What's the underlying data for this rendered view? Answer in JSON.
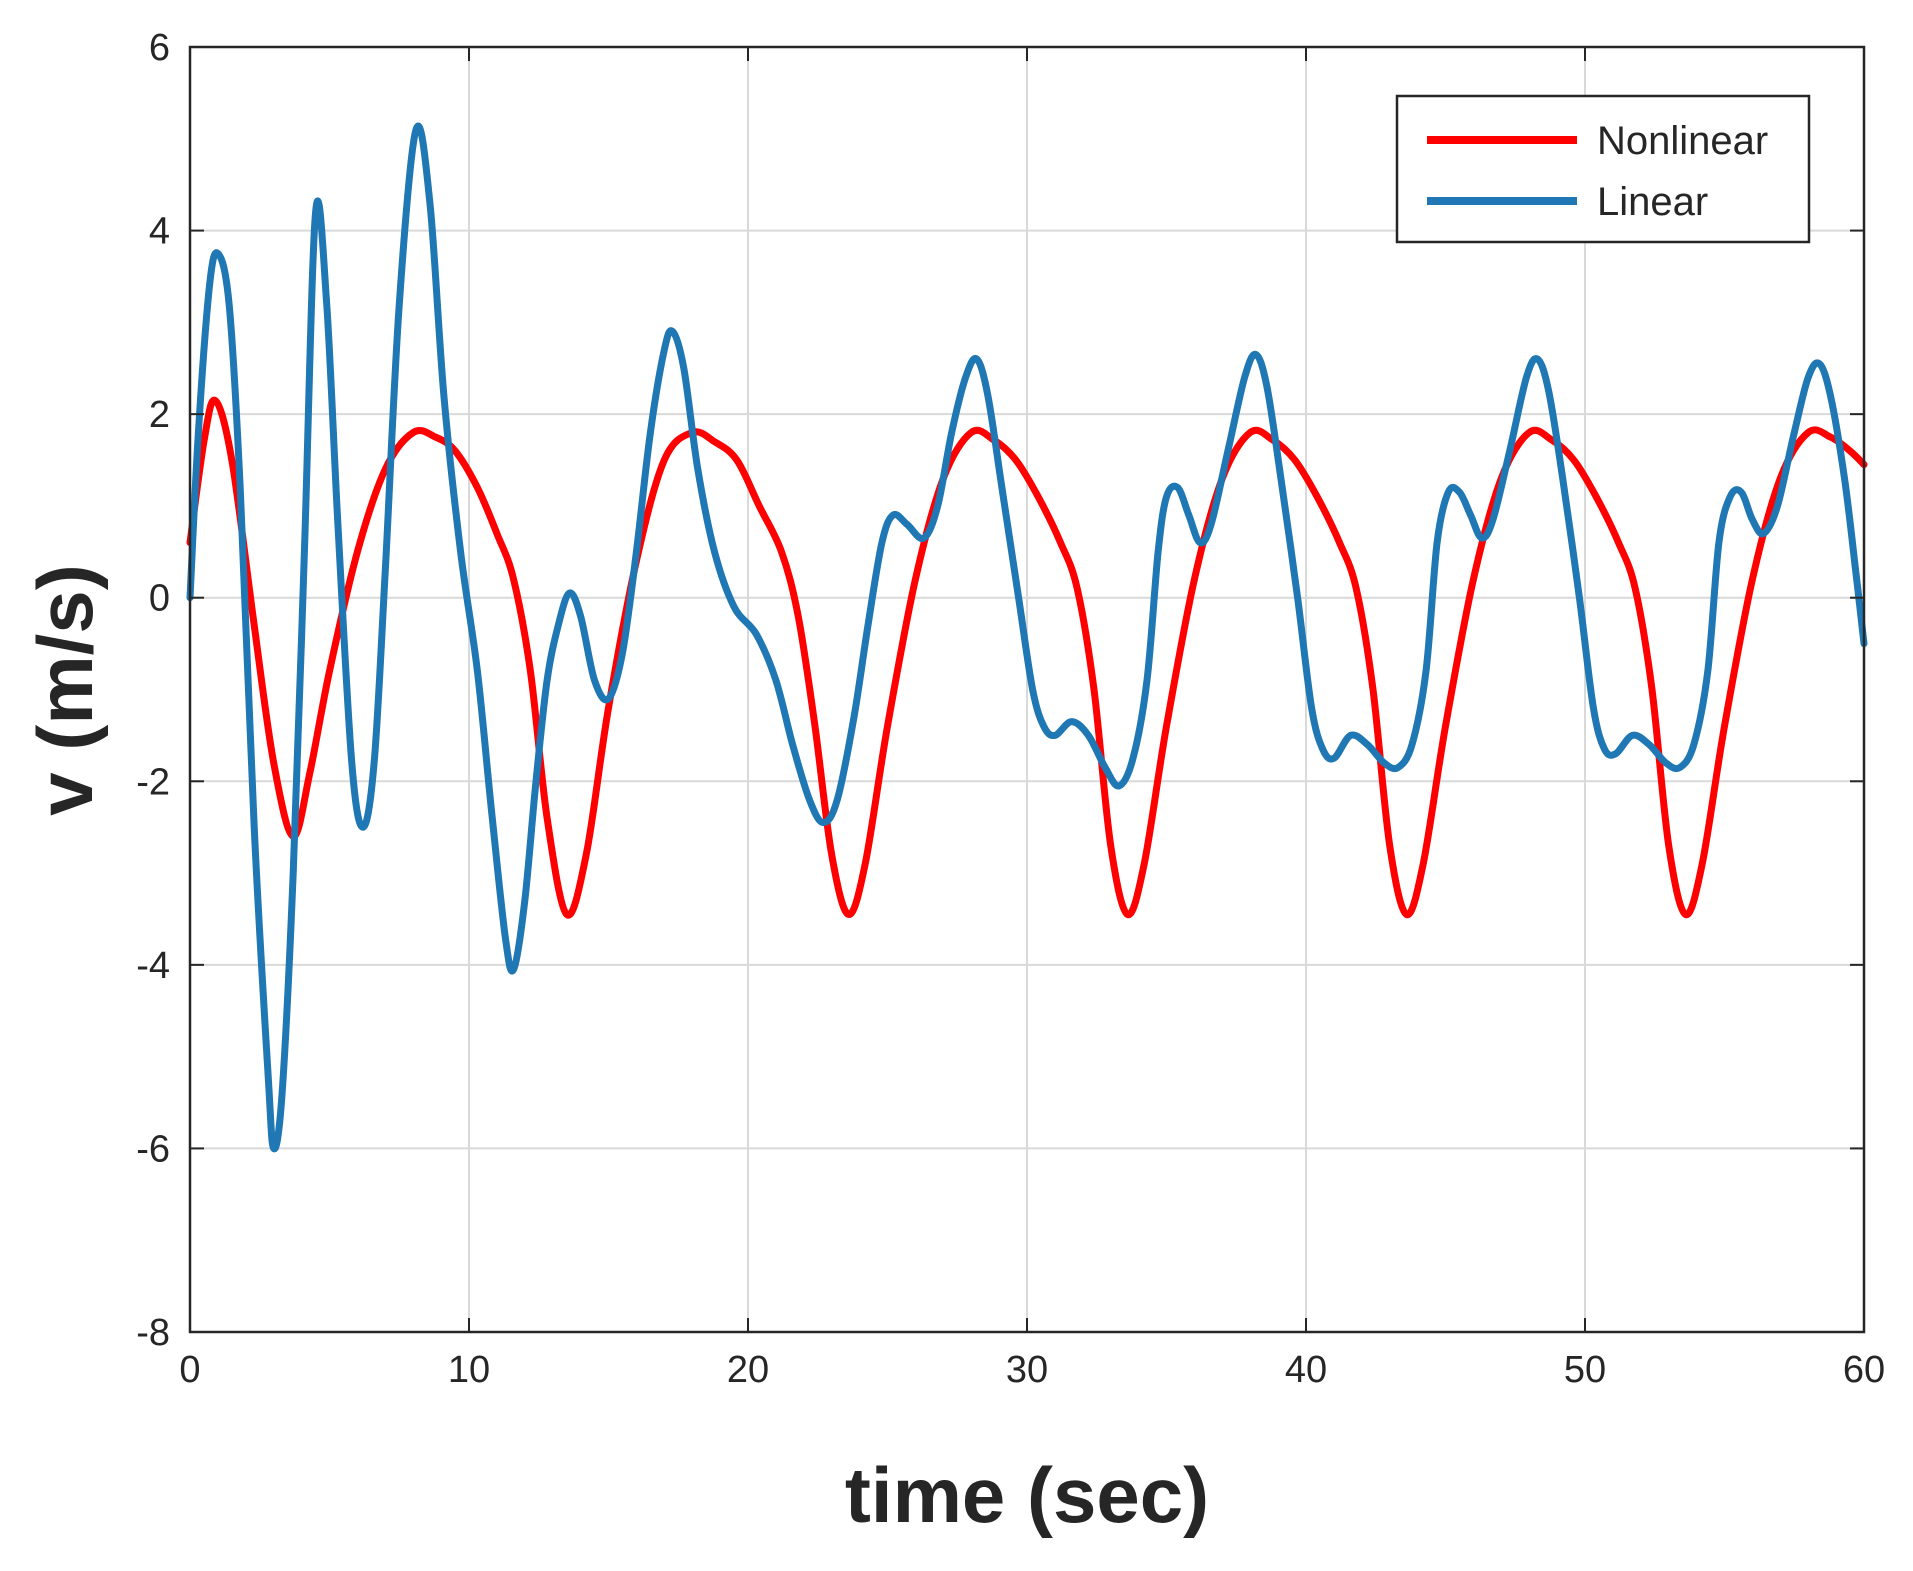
{
  "chart_data": {
    "type": "line",
    "title": "",
    "xlabel": "time (sec)",
    "ylabel": "v (m/s)",
    "xlim": [
      0,
      60
    ],
    "ylim": [
      -8,
      6
    ],
    "grid": true,
    "legend_position": "top-right",
    "xticks": [
      0,
      10,
      20,
      30,
      40,
      50,
      60
    ],
    "xtick_labels": [
      "0",
      "10",
      "20",
      "30",
      "40",
      "50",
      "60"
    ],
    "yticks": [
      6,
      4,
      2,
      0,
      -2,
      -4,
      -6,
      -8
    ],
    "ytick_labels": [
      "6",
      "4",
      "2",
      "0",
      "-2",
      "-4",
      "-6",
      "-8"
    ],
    "series": [
      {
        "name": "Nonlinear",
        "color": "#ff0000",
        "points": [
          [
            0,
            0.6
          ],
          [
            0.5,
            1.7
          ],
          [
            0.9,
            2.15
          ],
          [
            1.5,
            1.5
          ],
          [
            2.3,
            -0.3
          ],
          [
            3.0,
            -1.8
          ],
          [
            3.7,
            -2.6
          ],
          [
            4.3,
            -1.9
          ],
          [
            5.0,
            -0.8
          ],
          [
            6.0,
            0.5
          ],
          [
            7.0,
            1.4
          ],
          [
            8.0,
            1.8
          ],
          [
            8.8,
            1.75
          ],
          [
            9.5,
            1.6
          ],
          [
            10.3,
            1.2
          ],
          [
            11.0,
            0.7
          ],
          [
            11.6,
            0.2
          ],
          [
            12.2,
            -0.8
          ],
          [
            12.8,
            -2.4
          ],
          [
            13.5,
            -3.45
          ],
          [
            14.2,
            -2.8
          ],
          [
            15.0,
            -1.2
          ],
          [
            16.0,
            0.4
          ],
          [
            17.0,
            1.5
          ],
          [
            18.0,
            1.8
          ],
          [
            18.8,
            1.7
          ],
          [
            19.6,
            1.5
          ],
          [
            20.4,
            1.0
          ],
          [
            21.2,
            0.5
          ],
          [
            21.8,
            -0.2
          ],
          [
            22.4,
            -1.4
          ],
          [
            23.0,
            -2.8
          ],
          [
            23.6,
            -3.45
          ],
          [
            24.2,
            -2.9
          ],
          [
            25.0,
            -1.4
          ],
          [
            26.0,
            0.2
          ],
          [
            27.0,
            1.3
          ],
          [
            28.0,
            1.8
          ],
          [
            28.8,
            1.72
          ],
          [
            29.6,
            1.5
          ],
          [
            30.4,
            1.1
          ],
          [
            31.2,
            0.6
          ],
          [
            31.8,
            0.1
          ],
          [
            32.4,
            -1.0
          ],
          [
            33.0,
            -2.7
          ],
          [
            33.6,
            -3.45
          ],
          [
            34.2,
            -2.9
          ],
          [
            35.0,
            -1.4
          ],
          [
            36.0,
            0.2
          ],
          [
            37.0,
            1.3
          ],
          [
            38.0,
            1.8
          ],
          [
            38.8,
            1.72
          ],
          [
            39.6,
            1.5
          ],
          [
            40.4,
            1.1
          ],
          [
            41.2,
            0.6
          ],
          [
            41.8,
            0.1
          ],
          [
            42.4,
            -1.0
          ],
          [
            43.0,
            -2.7
          ],
          [
            43.6,
            -3.45
          ],
          [
            44.2,
            -2.9
          ],
          [
            45.0,
            -1.4
          ],
          [
            46.0,
            0.2
          ],
          [
            47.0,
            1.3
          ],
          [
            48.0,
            1.8
          ],
          [
            48.8,
            1.72
          ],
          [
            49.6,
            1.5
          ],
          [
            50.4,
            1.1
          ],
          [
            51.2,
            0.6
          ],
          [
            51.8,
            0.1
          ],
          [
            52.4,
            -1.0
          ],
          [
            53.0,
            -2.7
          ],
          [
            53.6,
            -3.45
          ],
          [
            54.2,
            -2.9
          ],
          [
            55.0,
            -1.4
          ],
          [
            56.0,
            0.2
          ],
          [
            57.0,
            1.3
          ],
          [
            58.0,
            1.8
          ],
          [
            58.8,
            1.75
          ],
          [
            59.5,
            1.6
          ],
          [
            60.0,
            1.45
          ]
        ]
      },
      {
        "name": "Linear",
        "color": "#1f77b4",
        "points": [
          [
            0,
            0.0
          ],
          [
            0.3,
            1.8
          ],
          [
            0.7,
            3.4
          ],
          [
            1.0,
            3.75
          ],
          [
            1.4,
            3.2
          ],
          [
            1.8,
            1.2
          ],
          [
            2.3,
            -2.5
          ],
          [
            2.8,
            -5.2
          ],
          [
            3.0,
            -6.0
          ],
          [
            3.3,
            -5.4
          ],
          [
            3.7,
            -3.0
          ],
          [
            4.1,
            0.5
          ],
          [
            4.5,
            4.2
          ],
          [
            4.9,
            3.2
          ],
          [
            5.3,
            0.8
          ],
          [
            5.8,
            -1.8
          ],
          [
            6.2,
            -2.5
          ],
          [
            6.6,
            -1.8
          ],
          [
            7.0,
            0.3
          ],
          [
            7.5,
            3.2
          ],
          [
            8.1,
            5.1
          ],
          [
            8.6,
            4.3
          ],
          [
            9.1,
            2.2
          ],
          [
            9.7,
            0.5
          ],
          [
            10.3,
            -0.8
          ],
          [
            10.8,
            -2.3
          ],
          [
            11.3,
            -3.7
          ],
          [
            11.6,
            -4.05
          ],
          [
            12.0,
            -3.3
          ],
          [
            12.4,
            -2.0
          ],
          [
            12.8,
            -0.9
          ],
          [
            13.2,
            -0.3
          ],
          [
            13.6,
            0.05
          ],
          [
            14.0,
            -0.2
          ],
          [
            14.5,
            -0.9
          ],
          [
            15.0,
            -1.1
          ],
          [
            15.5,
            -0.6
          ],
          [
            16.0,
            0.5
          ],
          [
            16.5,
            1.8
          ],
          [
            17.0,
            2.7
          ],
          [
            17.3,
            2.9
          ],
          [
            17.7,
            2.5
          ],
          [
            18.2,
            1.4
          ],
          [
            18.8,
            0.5
          ],
          [
            19.5,
            -0.1
          ],
          [
            20.3,
            -0.4
          ],
          [
            21.0,
            -0.9
          ],
          [
            21.6,
            -1.6
          ],
          [
            22.2,
            -2.2
          ],
          [
            22.7,
            -2.45
          ],
          [
            23.2,
            -2.2
          ],
          [
            23.8,
            -1.3
          ],
          [
            24.3,
            -0.3
          ],
          [
            24.8,
            0.6
          ],
          [
            25.2,
            0.9
          ],
          [
            25.7,
            0.8
          ],
          [
            26.3,
            0.65
          ],
          [
            26.8,
            1.0
          ],
          [
            27.3,
            1.8
          ],
          [
            27.8,
            2.4
          ],
          [
            28.2,
            2.6
          ],
          [
            28.6,
            2.2
          ],
          [
            29.1,
            1.2
          ],
          [
            29.7,
            0.0
          ],
          [
            30.2,
            -1.0
          ],
          [
            30.6,
            -1.4
          ],
          [
            31.0,
            -1.5
          ],
          [
            31.6,
            -1.35
          ],
          [
            32.2,
            -1.5
          ],
          [
            32.8,
            -1.85
          ],
          [
            33.3,
            -2.05
          ],
          [
            33.8,
            -1.75
          ],
          [
            34.3,
            -0.9
          ],
          [
            34.7,
            0.5
          ],
          [
            35.0,
            1.1
          ],
          [
            35.4,
            1.2
          ],
          [
            35.8,
            0.9
          ],
          [
            36.2,
            0.6
          ],
          [
            36.6,
            0.8
          ],
          [
            37.2,
            1.6
          ],
          [
            37.8,
            2.4
          ],
          [
            38.2,
            2.65
          ],
          [
            38.6,
            2.3
          ],
          [
            39.1,
            1.3
          ],
          [
            39.7,
            0.0
          ],
          [
            40.2,
            -1.2
          ],
          [
            40.6,
            -1.65
          ],
          [
            41.0,
            -1.75
          ],
          [
            41.6,
            -1.5
          ],
          [
            42.2,
            -1.6
          ],
          [
            42.8,
            -1.8
          ],
          [
            43.3,
            -1.85
          ],
          [
            43.8,
            -1.6
          ],
          [
            44.3,
            -0.8
          ],
          [
            44.7,
            0.6
          ],
          [
            45.1,
            1.15
          ],
          [
            45.5,
            1.15
          ],
          [
            45.9,
            0.9
          ],
          [
            46.3,
            0.65
          ],
          [
            46.7,
            0.85
          ],
          [
            47.3,
            1.6
          ],
          [
            47.9,
            2.4
          ],
          [
            48.3,
            2.6
          ],
          [
            48.7,
            2.25
          ],
          [
            49.2,
            1.3
          ],
          [
            49.8,
            0.0
          ],
          [
            50.3,
            -1.2
          ],
          [
            50.7,
            -1.65
          ],
          [
            51.1,
            -1.7
          ],
          [
            51.7,
            -1.5
          ],
          [
            52.3,
            -1.6
          ],
          [
            52.9,
            -1.8
          ],
          [
            53.4,
            -1.85
          ],
          [
            53.9,
            -1.6
          ],
          [
            54.4,
            -0.8
          ],
          [
            54.8,
            0.6
          ],
          [
            55.2,
            1.1
          ],
          [
            55.6,
            1.15
          ],
          [
            56.0,
            0.85
          ],
          [
            56.4,
            0.7
          ],
          [
            56.9,
            1.0
          ],
          [
            57.5,
            1.8
          ],
          [
            58.0,
            2.4
          ],
          [
            58.4,
            2.55
          ],
          [
            58.8,
            2.2
          ],
          [
            59.3,
            1.3
          ],
          [
            59.7,
            0.3
          ],
          [
            60.0,
            -0.5
          ]
        ]
      }
    ]
  }
}
